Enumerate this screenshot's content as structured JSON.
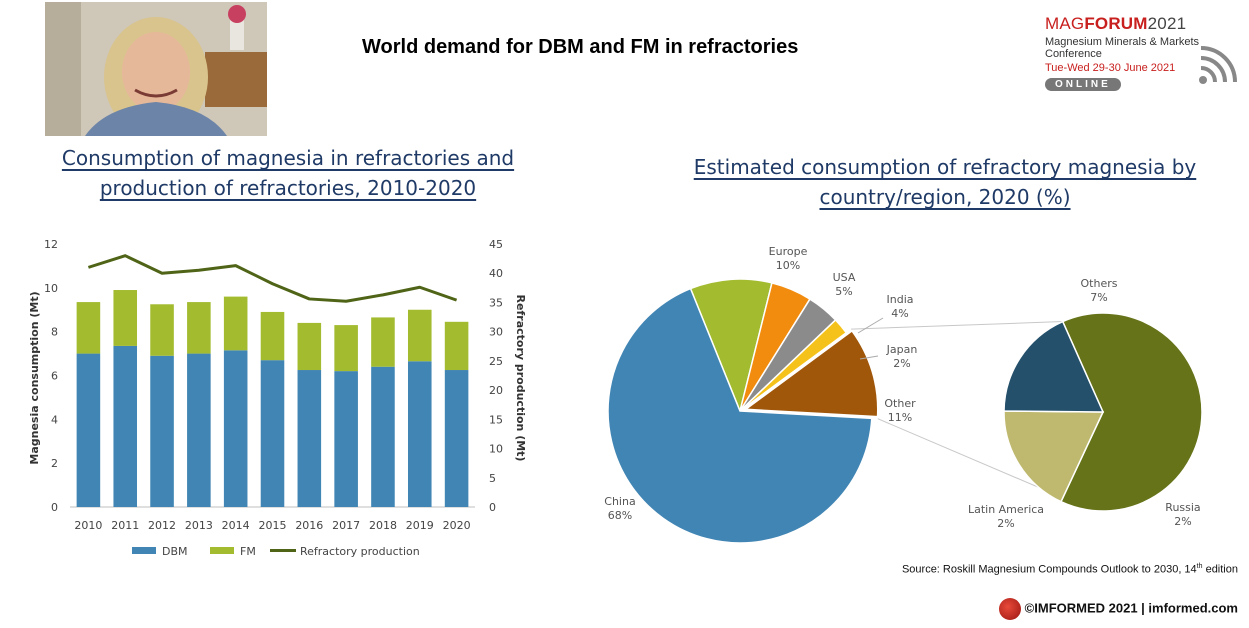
{
  "slide": {
    "title": "World demand for DBM and FM in refractories",
    "left_subtitle_line1": "Consumption of magnesia in refractories and",
    "left_subtitle_line2": "production of refractories,  2010-2020",
    "right_subtitle_line1": "Estimated consumption of refractory magnesia by",
    "right_subtitle_line2": "country/region, 2020 (%)",
    "source": "Source: Roskill Magnesium Compounds Outlook to 2030, 14",
    "source_sup": "th",
    "source_end": " edition",
    "copyright": "©IMFORMED 2021  | imformed.com"
  },
  "logo": {
    "name_pre": "MAG",
    "name_bold": "FORUM",
    "year": "2021",
    "subtitle": "Magnesium Minerals & Markets Conference",
    "dates": "Tue-Wed 29-30 June 2021",
    "badge": "ONLINE"
  },
  "colors": {
    "dbm": "#4185b4",
    "fm": "#a2bb2f",
    "refractory_line": "#4f6416",
    "title_blue": "#1f3a66",
    "brand_red": "#c8201e"
  },
  "chart_data": [
    {
      "type": "bar",
      "stacked": true,
      "categories": [
        "2010",
        "2011",
        "2012",
        "2013",
        "2014",
        "2015",
        "2016",
        "2017",
        "2018",
        "2019",
        "2020"
      ],
      "series": [
        {
          "name": "DBM",
          "color": "#4185b4",
          "values": [
            7.0,
            7.35,
            6.9,
            7.0,
            7.15,
            6.7,
            6.25,
            6.2,
            6.4,
            6.65,
            6.25
          ]
        },
        {
          "name": "FM",
          "color": "#a2bb2f",
          "values": [
            2.35,
            2.55,
            2.35,
            2.35,
            2.45,
            2.2,
            2.15,
            2.1,
            2.25,
            2.35,
            2.2
          ]
        },
        {
          "name": "Refractory production",
          "type": "line",
          "axis": "right",
          "color": "#4f6416",
          "values": [
            41,
            43,
            40,
            40.5,
            41.3,
            38.2,
            35.6,
            35.2,
            36.3,
            37.6,
            35.4
          ]
        }
      ],
      "ylabel": "Magnesia consumption (Mt)",
      "y2label": "Refractory production (Mt)",
      "ylim": [
        0,
        12
      ],
      "yticks": [
        0,
        2,
        4,
        6,
        8,
        10,
        12
      ],
      "y2lim": [
        0,
        45
      ],
      "y2ticks": [
        0,
        5,
        10,
        15,
        20,
        25,
        30,
        35,
        40,
        45
      ],
      "legend": "bottom",
      "grid": false
    },
    {
      "type": "pie",
      "labels": [
        "Europe",
        "USA",
        "India",
        "Japan",
        "Other",
        "China"
      ],
      "values": [
        10,
        5,
        4,
        2,
        11,
        68
      ],
      "value_labels": [
        "10%",
        "5%",
        "4%",
        "2%",
        "11%",
        "68%"
      ],
      "colors": [
        "#a2bb2f",
        "#f28c0e",
        "#8b8b8b",
        "#f5c21b",
        "#a0570a",
        "#4185b4"
      ],
      "exploded": "Other"
    },
    {
      "type": "pie",
      "breakdown_of": "Other",
      "labels": [
        "Others",
        "Russia",
        "Latin America"
      ],
      "values": [
        7,
        2,
        2
      ],
      "value_labels": [
        "7%",
        "2%",
        "2%"
      ],
      "colors": [
        "#667318",
        "#bfb96f",
        "#24506b"
      ]
    }
  ]
}
